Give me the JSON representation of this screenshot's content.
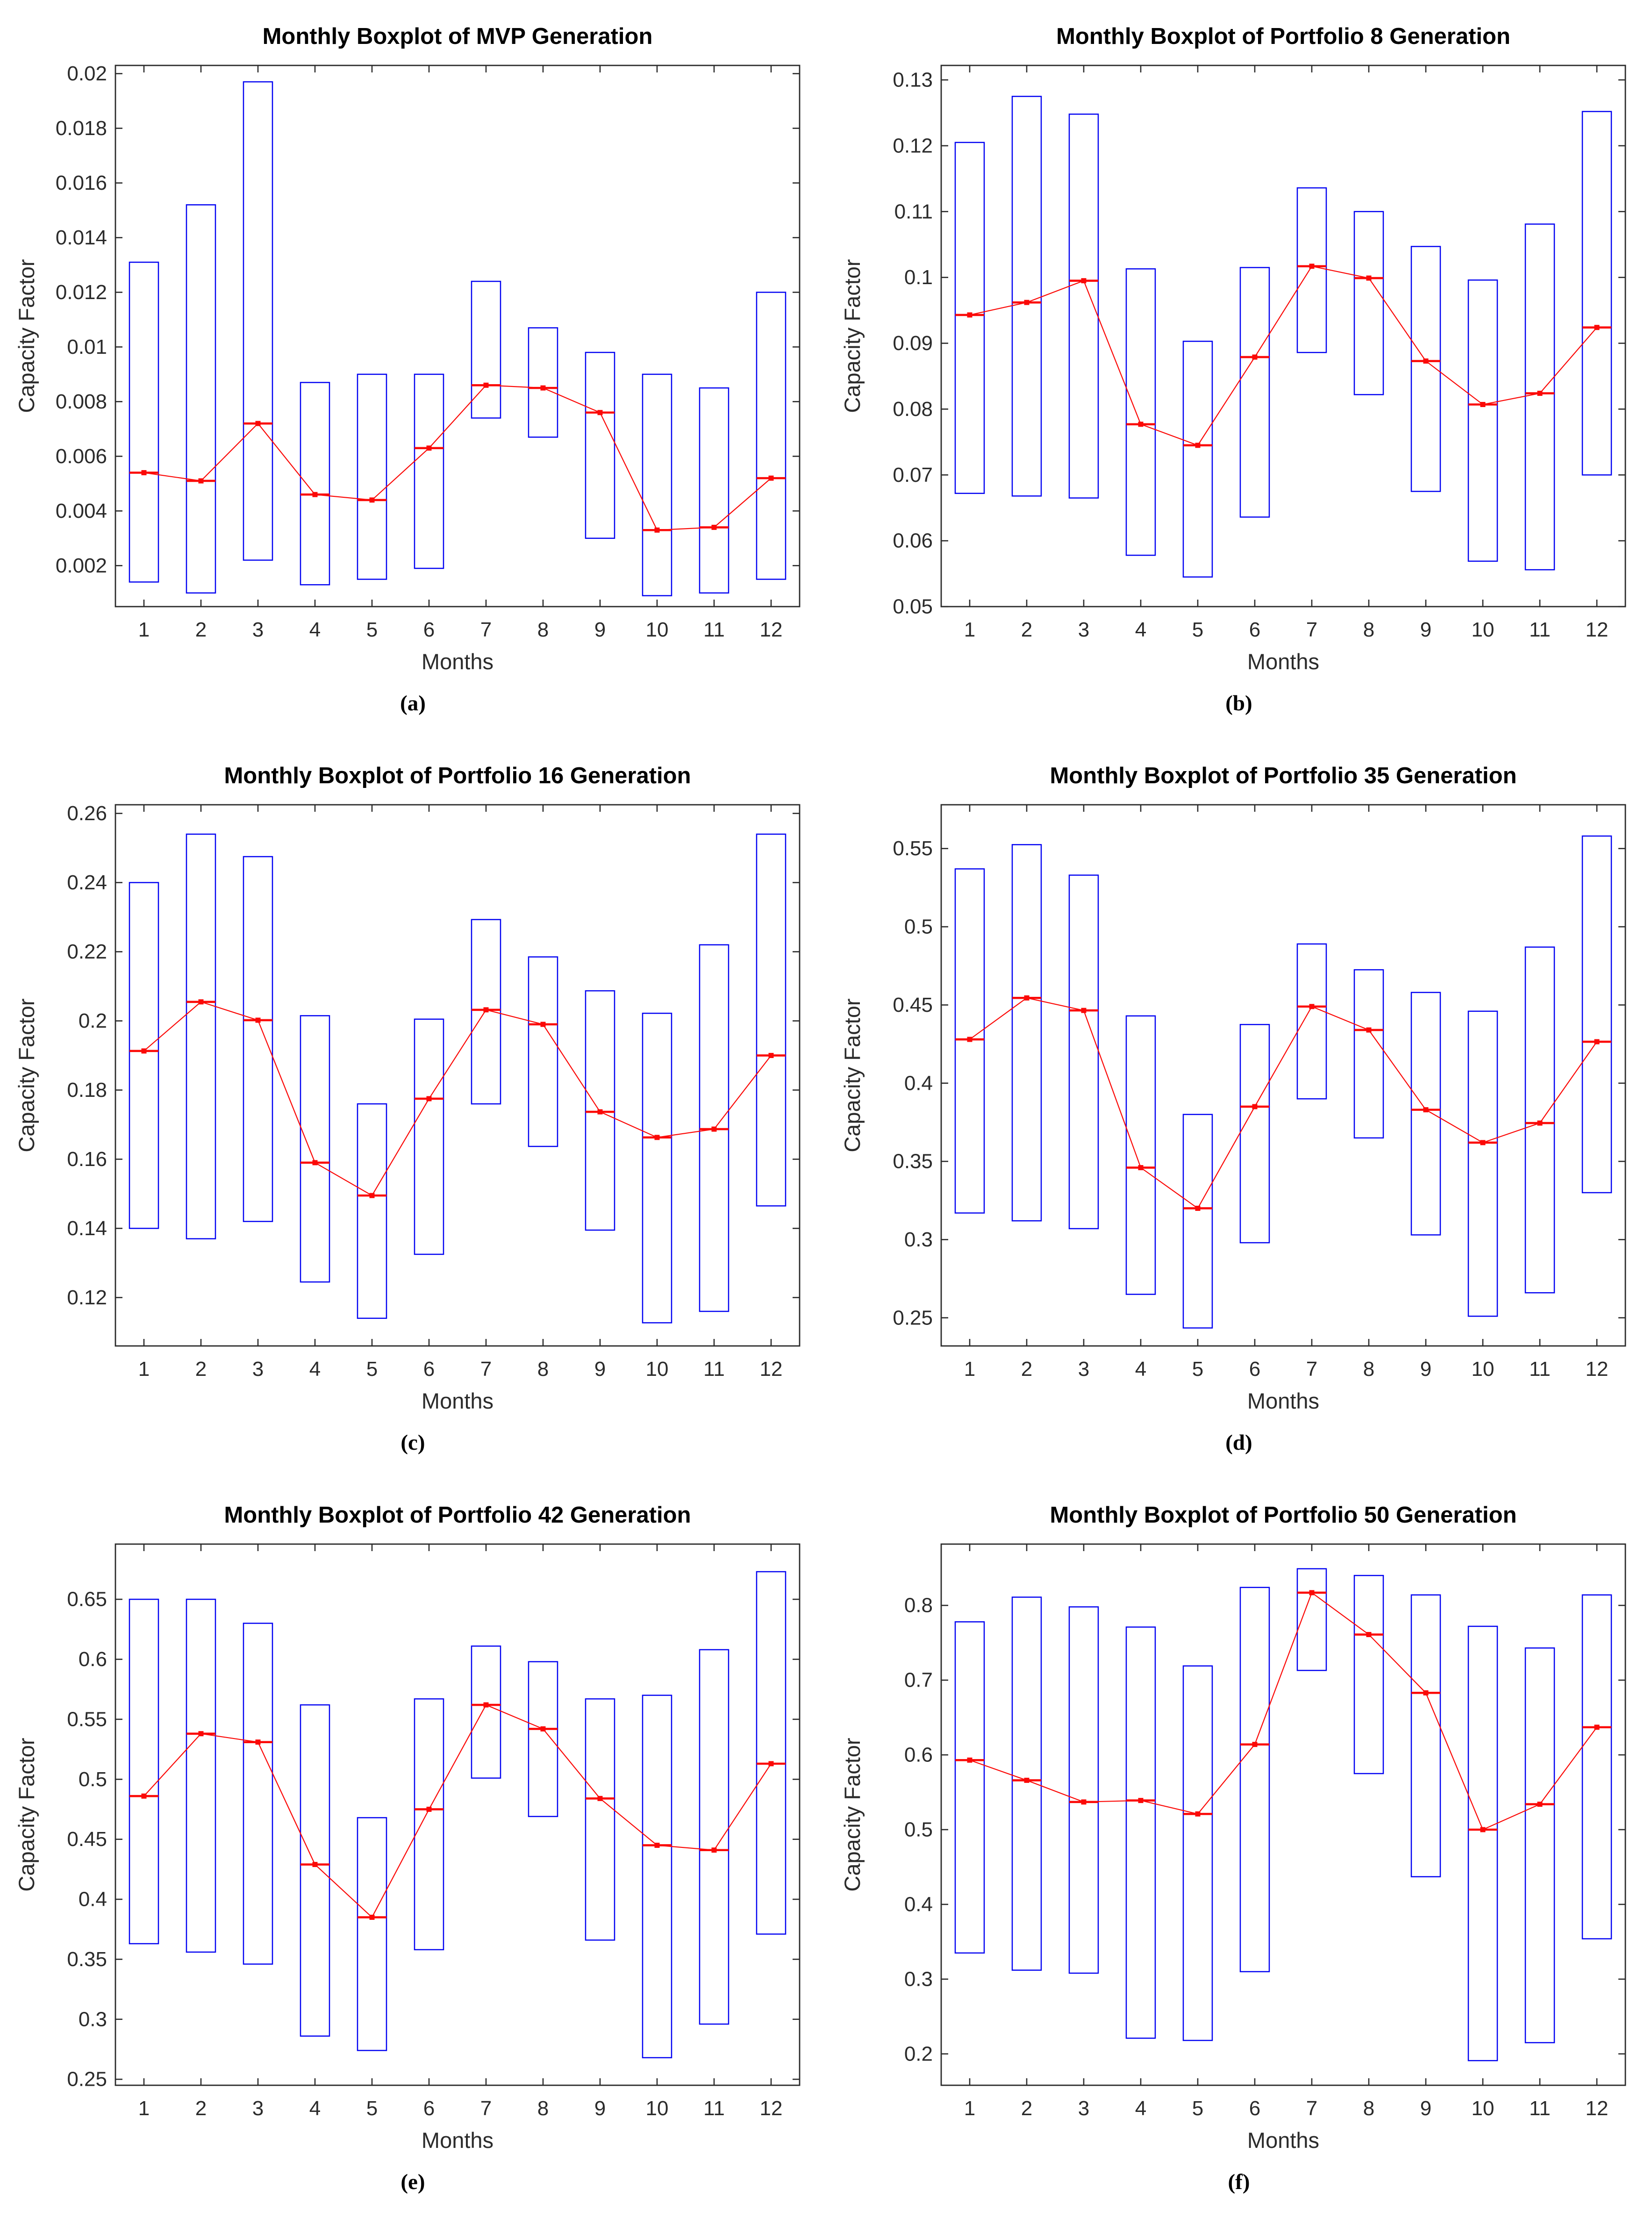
{
  "style": {
    "background": "#ffffff",
    "box_color": "#0202f2",
    "median_color": "#fb0907",
    "axis_color": "#2b2b2b",
    "tick_label_color": "#2b2b2b",
    "title_color": "#000000"
  },
  "chart_data": [
    {
      "id": "a",
      "caption": "(a)",
      "type": "boxplot",
      "title": "Monthly Boxplot of MVP Generation",
      "xlabel": "Months",
      "ylabel": "Capacity Factor",
      "months": [
        1,
        2,
        3,
        4,
        5,
        6,
        7,
        8,
        9,
        10,
        11,
        12
      ],
      "box_low": [
        0.0014,
        0.001,
        0.0022,
        0.0013,
        0.0015,
        0.0019,
        0.0074,
        0.0067,
        0.003,
        0.0009,
        0.001,
        0.0015
      ],
      "median": [
        0.0054,
        0.0051,
        0.0072,
        0.0046,
        0.0044,
        0.0063,
        0.0086,
        0.0085,
        0.0076,
        0.0033,
        0.0034,
        0.0052
      ],
      "box_high": [
        0.0131,
        0.0152,
        0.0197,
        0.0087,
        0.009,
        0.009,
        0.0124,
        0.0107,
        0.0098,
        0.009,
        0.0085,
        0.012
      ],
      "ylim": [
        0.0005,
        0.0203
      ],
      "yticks": [
        0.002,
        0.004,
        0.006,
        0.008,
        0.01,
        0.012,
        0.014,
        0.016,
        0.018,
        0.02
      ],
      "ytick_labels": [
        "0.002",
        "0.004",
        "0.006",
        "0.008",
        "0.01",
        "0.012",
        "0.014",
        "0.016",
        "0.018",
        "0.02"
      ]
    },
    {
      "id": "b",
      "caption": "(b)",
      "type": "boxplot",
      "title": "Monthly Boxplot of Portfolio 8 Generation",
      "xlabel": "Months",
      "ylabel": "Capacity Factor",
      "months": [
        1,
        2,
        3,
        4,
        5,
        6,
        7,
        8,
        9,
        10,
        11,
        12
      ],
      "box_low": [
        0.0672,
        0.0668,
        0.0665,
        0.0578,
        0.0545,
        0.0636,
        0.0886,
        0.0822,
        0.0675,
        0.0569,
        0.0556,
        0.07
      ],
      "median": [
        0.0943,
        0.0962,
        0.0995,
        0.0777,
        0.0745,
        0.0879,
        0.1017,
        0.0999,
        0.0873,
        0.0807,
        0.0824,
        0.0924
      ],
      "box_high": [
        0.1205,
        0.1275,
        0.1248,
        0.1013,
        0.0903,
        0.1015,
        0.1136,
        0.11,
        0.1047,
        0.0996,
        0.1081,
        0.1252
      ],
      "ylim": [
        0.05,
        0.1322
      ],
      "yticks": [
        0.05,
        0.06,
        0.07,
        0.08,
        0.09,
        0.1,
        0.11,
        0.12,
        0.13
      ],
      "ytick_labels": [
        "0.05",
        "0.06",
        "0.07",
        "0.08",
        "0.09",
        "0.1",
        "0.11",
        "0.12",
        "0.13"
      ]
    },
    {
      "id": "c",
      "caption": "(c)",
      "type": "boxplot",
      "title": "Monthly Boxplot of Portfolio 16 Generation",
      "xlabel": "Months",
      "ylabel": "Capacity Factor",
      "months": [
        1,
        2,
        3,
        4,
        5,
        6,
        7,
        8,
        9,
        10,
        11,
        12
      ],
      "box_low": [
        0.14,
        0.137,
        0.142,
        0.1245,
        0.114,
        0.1325,
        0.176,
        0.1637,
        0.1395,
        0.1127,
        0.116,
        0.1465
      ],
      "median": [
        0.1913,
        0.2055,
        0.2002,
        0.159,
        0.1495,
        0.1775,
        0.2032,
        0.199,
        0.1737,
        0.1663,
        0.1687,
        0.19
      ],
      "box_high": [
        0.24,
        0.254,
        0.2475,
        0.2015,
        0.176,
        0.2005,
        0.2293,
        0.2185,
        0.2087,
        0.2022,
        0.222,
        0.254
      ],
      "ylim": [
        0.106,
        0.2625
      ],
      "yticks": [
        0.12,
        0.14,
        0.16,
        0.18,
        0.2,
        0.22,
        0.24,
        0.26
      ],
      "ytick_labels": [
        "0.12",
        "0.14",
        "0.16",
        "0.18",
        "0.2",
        "0.22",
        "0.24",
        "0.26"
      ]
    },
    {
      "id": "d",
      "caption": "(d)",
      "type": "boxplot",
      "title": "Monthly Boxplot of Portfolio 35 Generation",
      "xlabel": "Months",
      "ylabel": "Capacity Factor",
      "months": [
        1,
        2,
        3,
        4,
        5,
        6,
        7,
        8,
        9,
        10,
        11,
        12
      ],
      "box_low": [
        0.317,
        0.312,
        0.307,
        0.265,
        0.2435,
        0.298,
        0.39,
        0.365,
        0.303,
        0.251,
        0.266,
        0.33
      ],
      "median": [
        0.428,
        0.4545,
        0.4465,
        0.346,
        0.32,
        0.385,
        0.449,
        0.434,
        0.383,
        0.362,
        0.3745,
        0.4265
      ],
      "box_high": [
        0.537,
        0.5525,
        0.533,
        0.443,
        0.38,
        0.4375,
        0.489,
        0.4725,
        0.458,
        0.446,
        0.487,
        0.558
      ],
      "ylim": [
        0.232,
        0.578
      ],
      "yticks": [
        0.25,
        0.3,
        0.35,
        0.4,
        0.45,
        0.5,
        0.55
      ],
      "ytick_labels": [
        "0.25",
        "0.3",
        "0.35",
        "0.4",
        "0.45",
        "0.5",
        "0.55"
      ]
    },
    {
      "id": "e",
      "caption": "(e)",
      "type": "boxplot",
      "title": "Monthly Boxplot of Portfolio 42 Generation",
      "xlabel": "Months",
      "ylabel": "Capacity Factor",
      "months": [
        1,
        2,
        3,
        4,
        5,
        6,
        7,
        8,
        9,
        10,
        11,
        12
      ],
      "box_low": [
        0.363,
        0.356,
        0.346,
        0.286,
        0.274,
        0.358,
        0.501,
        0.469,
        0.366,
        0.268,
        0.296,
        0.371
      ],
      "median": [
        0.486,
        0.538,
        0.531,
        0.429,
        0.385,
        0.475,
        0.562,
        0.542,
        0.484,
        0.445,
        0.441,
        0.513
      ],
      "box_high": [
        0.65,
        0.65,
        0.63,
        0.562,
        0.468,
        0.567,
        0.611,
        0.598,
        0.567,
        0.57,
        0.608,
        0.673
      ],
      "ylim": [
        0.245,
        0.696
      ],
      "yticks": [
        0.25,
        0.3,
        0.35,
        0.4,
        0.45,
        0.5,
        0.55,
        0.6,
        0.65
      ],
      "ytick_labels": [
        "0.25",
        "0.3",
        "0.35",
        "0.4",
        "0.45",
        "0.5",
        "0.55",
        "0.6",
        "0.65"
      ]
    },
    {
      "id": "f",
      "caption": "(f)",
      "type": "boxplot",
      "title": "Monthly Boxplot of Portfolio 50 Generation",
      "xlabel": "Months",
      "ylabel": "Capacity Factor",
      "months": [
        1,
        2,
        3,
        4,
        5,
        6,
        7,
        8,
        9,
        10,
        11,
        12
      ],
      "box_low": [
        0.335,
        0.312,
        0.308,
        0.221,
        0.218,
        0.31,
        0.713,
        0.575,
        0.437,
        0.191,
        0.215,
        0.354
      ],
      "median": [
        0.593,
        0.566,
        0.537,
        0.539,
        0.521,
        0.614,
        0.817,
        0.761,
        0.683,
        0.5,
        0.534,
        0.637
      ],
      "box_high": [
        0.778,
        0.811,
        0.798,
        0.771,
        0.719,
        0.824,
        0.849,
        0.84,
        0.814,
        0.772,
        0.743,
        0.814
      ],
      "ylim": [
        0.158,
        0.882
      ],
      "yticks": [
        0.2,
        0.3,
        0.4,
        0.5,
        0.6,
        0.7,
        0.8
      ],
      "ytick_labels": [
        "0.2",
        "0.3",
        "0.4",
        "0.5",
        "0.6",
        "0.7",
        "0.8"
      ]
    }
  ]
}
